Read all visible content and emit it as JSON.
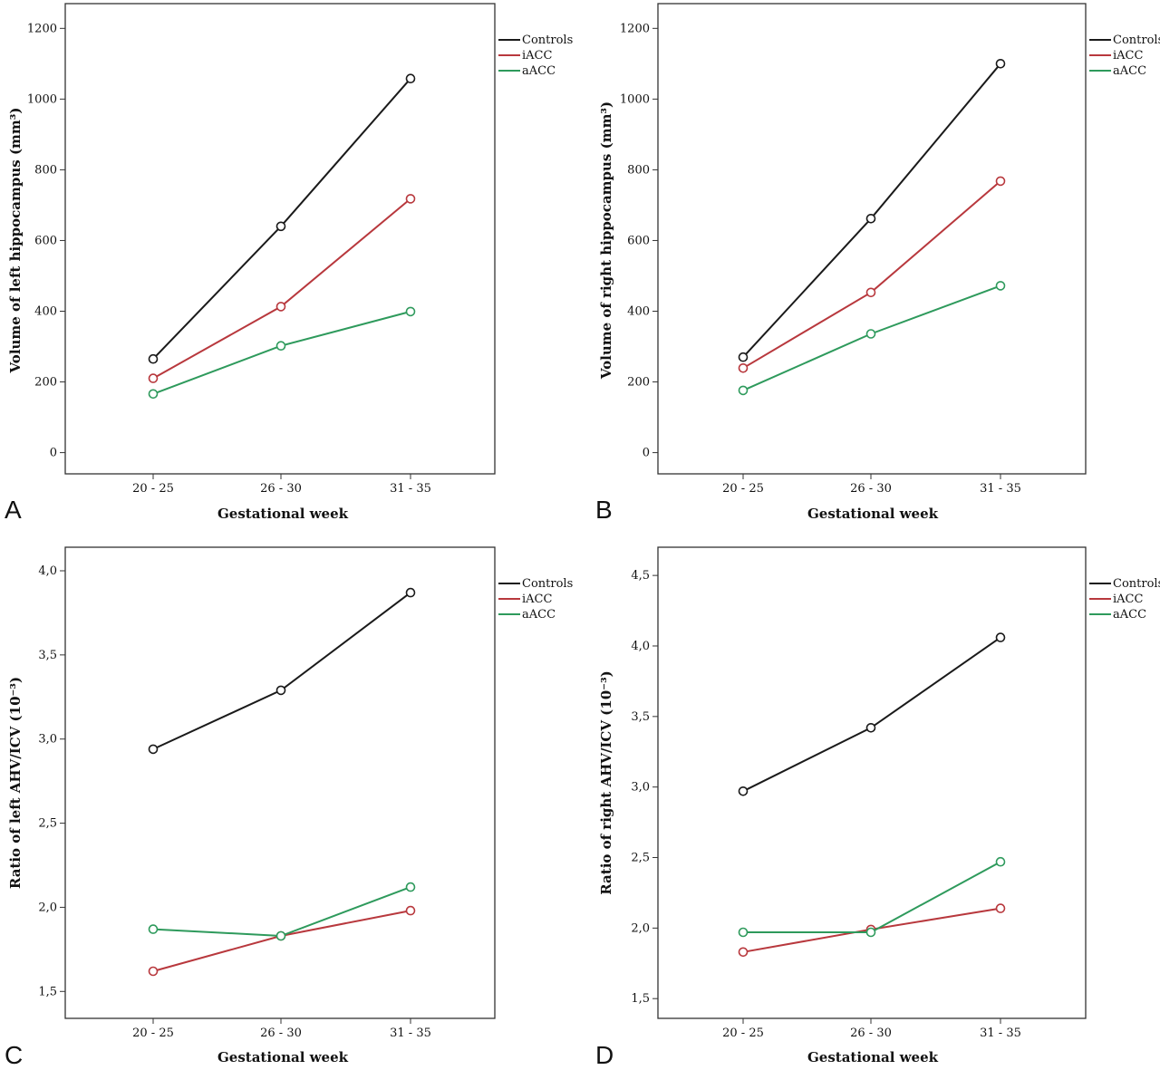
{
  "colors": {
    "Controls": "#1a1a1a",
    "iACC": "#b8383d",
    "aACC": "#2e9a5c"
  },
  "chart_data": [
    {
      "panel": "A",
      "type": "line",
      "categories": [
        "20 - 25",
        "26 - 30",
        "31 - 35"
      ],
      "xlabel": "Gestational week",
      "ylabel": "Volume of left hippocampus (mm³)",
      "ylim": [
        -60,
        1270
      ],
      "yticks": [
        "0",
        "200",
        "400",
        "600",
        "800",
        "1000",
        "1200"
      ],
      "ytick_values": [
        0,
        200,
        400,
        600,
        800,
        1000,
        1200
      ],
      "legend_position": "right",
      "grid": false,
      "series": [
        {
          "name": "Controls",
          "values": [
            265,
            640,
            1058
          ]
        },
        {
          "name": "iACC",
          "values": [
            210,
            413,
            718
          ]
        },
        {
          "name": "aACC",
          "values": [
            166,
            302,
            399
          ]
        }
      ]
    },
    {
      "panel": "B",
      "type": "line",
      "categories": [
        "20 - 25",
        "26 - 30",
        "31 - 35"
      ],
      "xlabel": "Gestational week",
      "ylabel": "Volume of right hippocampus (mm³)",
      "ylim": [
        -60,
        1270
      ],
      "yticks": [
        "0",
        "200",
        "400",
        "600",
        "800",
        "1000",
        "1200"
      ],
      "ytick_values": [
        0,
        200,
        400,
        600,
        800,
        1000,
        1200
      ],
      "legend_position": "right",
      "grid": false,
      "series": [
        {
          "name": "Controls",
          "values": [
            270,
            662,
            1100
          ]
        },
        {
          "name": "iACC",
          "values": [
            239,
            453,
            768
          ]
        },
        {
          "name": "aACC",
          "values": [
            176,
            336,
            472
          ]
        }
      ]
    },
    {
      "panel": "C",
      "type": "line",
      "categories": [
        "20 - 25",
        "26 - 30",
        "31 - 35"
      ],
      "xlabel": "Gestational week",
      "ylabel": "Ratio of left AHV/ICV (10⁻³)",
      "ylim": [
        1.34,
        4.14
      ],
      "yticks": [
        "1,5",
        "2,0",
        "2,5",
        "3,0",
        "3,5",
        "4,0"
      ],
      "ytick_values": [
        1.5,
        2.0,
        2.5,
        3.0,
        3.5,
        4.0
      ],
      "legend_position": "right",
      "grid": false,
      "series": [
        {
          "name": "Controls",
          "values": [
            2.94,
            3.29,
            3.87
          ]
        },
        {
          "name": "iACC",
          "values": [
            1.62,
            1.83,
            1.98
          ]
        },
        {
          "name": "aACC",
          "values": [
            1.87,
            1.83,
            2.12
          ]
        }
      ]
    },
    {
      "panel": "D",
      "type": "line",
      "categories": [
        "20 - 25",
        "26 - 30",
        "31 - 35"
      ],
      "xlabel": "Gestational week",
      "ylabel": "Ratio of right AHV/ICV (10⁻³)",
      "ylim": [
        1.36,
        4.7
      ],
      "yticks": [
        "1,5",
        "2,0",
        "2,5",
        "3,0",
        "3,5",
        "4,0",
        "4,5"
      ],
      "ytick_values": [
        1.5,
        2.0,
        2.5,
        3.0,
        3.5,
        4.0,
        4.5
      ],
      "legend_position": "right",
      "grid": false,
      "series": [
        {
          "name": "Controls",
          "values": [
            2.97,
            3.42,
            4.06
          ]
        },
        {
          "name": "iACC",
          "values": [
            1.83,
            1.99,
            2.14
          ]
        },
        {
          "name": "aACC",
          "values": [
            1.97,
            1.97,
            2.47
          ]
        }
      ]
    }
  ]
}
